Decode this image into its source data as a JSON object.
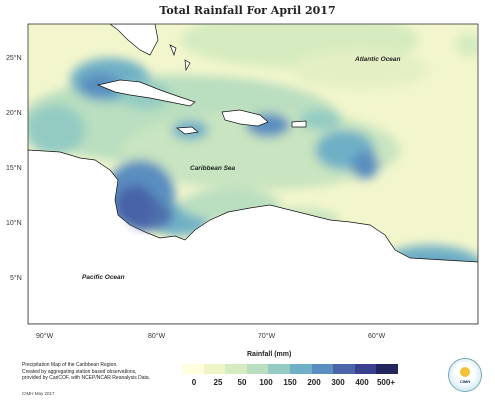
{
  "title": "Total Rainfall For April 2017",
  "axes": {
    "lat_ticks": [
      "25°N",
      "20°N",
      "15°N",
      "10°N",
      "5°N"
    ],
    "lon_ticks": [
      "90°W",
      "80°W",
      "70°W",
      "60°W"
    ]
  },
  "labels": {
    "atlantic": "Atlantic Ocean",
    "caribbean": "Caribbean Sea",
    "pacific": "Pacific Ocean"
  },
  "credit": {
    "line1": "Precipitation Map of the Caribbean Region.",
    "line2": "Created by aggregating station based observations,",
    "line3": "provided by CariCOF, with NCEP/NCAR Reanalysis Data.",
    "stamp": "CIMH May 2017"
  },
  "legend": {
    "title": "Rainfall (mm)",
    "ticks": [
      "0",
      "25",
      "50",
      "100",
      "150",
      "200",
      "300",
      "400",
      "500+"
    ],
    "colors": [
      "#ffffe0",
      "#f0f5c8",
      "#d6ebc0",
      "#b9dec0",
      "#93cbc3",
      "#6fb0c6",
      "#5a8ec0",
      "#4a64a8",
      "#3b3f8f",
      "#23255e"
    ]
  },
  "logo": {
    "text": "CIMH",
    "icon": "cimh-logo-icon"
  }
}
